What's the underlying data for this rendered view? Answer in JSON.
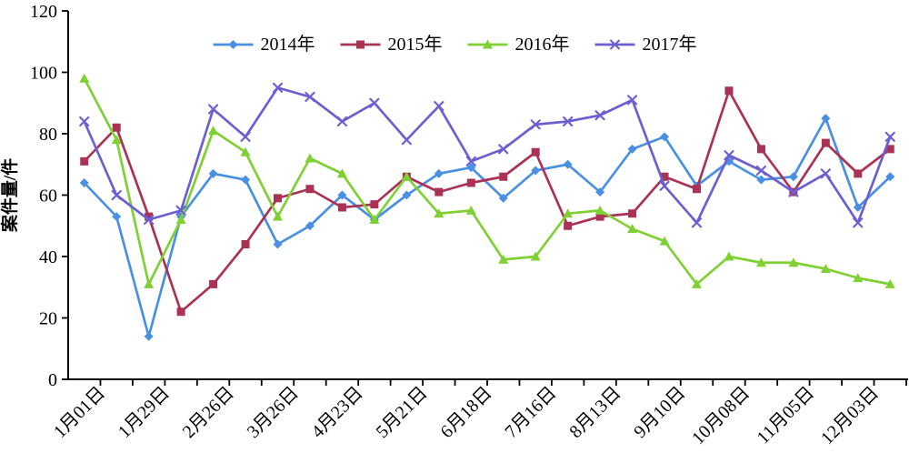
{
  "chart_data": {
    "type": "line",
    "title": "",
    "xlabel": "",
    "ylabel": "案件量/件",
    "ylim": [
      0,
      120
    ],
    "yticks": [
      0,
      20,
      40,
      60,
      80,
      100,
      120
    ],
    "grid": false,
    "legend_position": "top-center",
    "n_points": 26,
    "x_label_every": 2,
    "x_labels": [
      "1月01日",
      "1月29日",
      "2月26日",
      "3月26日",
      "4月23日",
      "5月21日",
      "6月18日",
      "7月16日",
      "8月13日",
      "9月10日",
      "10月08日",
      "11月05日",
      "12月03日"
    ],
    "axis_color": "#000000",
    "series": [
      {
        "name": "2014年",
        "color": "#4a90e2",
        "marker": "diamond",
        "values": [
          64,
          53,
          14,
          53,
          67,
          65,
          44,
          50,
          60,
          52,
          60,
          67,
          69,
          59,
          68,
          70,
          61,
          75,
          79,
          63,
          71,
          65,
          66,
          85,
          56,
          66
        ]
      },
      {
        "name": "2015年",
        "color": "#aa3254",
        "marker": "square",
        "values": [
          71,
          82,
          53,
          22,
          31,
          44,
          59,
          62,
          56,
          57,
          66,
          61,
          64,
          66,
          74,
          50,
          53,
          54,
          66,
          62,
          94,
          75,
          61,
          77,
          67,
          75
        ]
      },
      {
        "name": "2016年",
        "color": "#7fd133",
        "marker": "triangle",
        "values": [
          98,
          78,
          31,
          52,
          81,
          74,
          53,
          72,
          67,
          52,
          66,
          54,
          55,
          39,
          40,
          54,
          55,
          49,
          45,
          31,
          40,
          38,
          38,
          36,
          33,
          31
        ]
      },
      {
        "name": "2017年",
        "color": "#6c5fd2",
        "marker": "x",
        "values": [
          84,
          60,
          52,
          55,
          88,
          79,
          95,
          92,
          84,
          90,
          78,
          89,
          71,
          75,
          83,
          84,
          86,
          91,
          63,
          51,
          73,
          68,
          61,
          67,
          51,
          79
        ]
      }
    ]
  }
}
